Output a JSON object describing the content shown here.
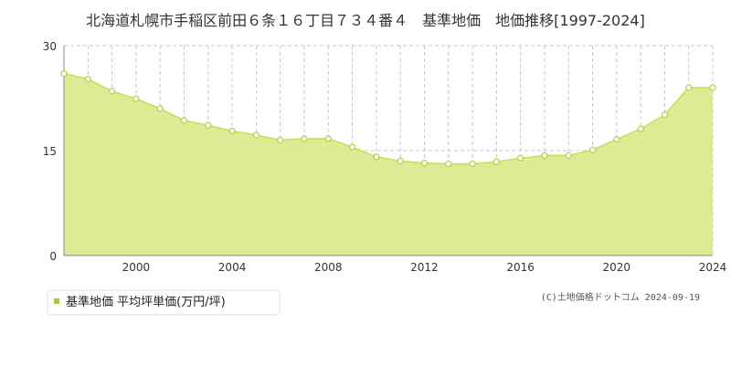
{
  "chart_data": {
    "type": "area",
    "title": "北海道札幌市手稲区前田６条１６丁目７３４番４　基準地価　地価推移[1997-2024]",
    "x": [
      1997,
      1998,
      1999,
      2000,
      2001,
      2002,
      2003,
      2004,
      2005,
      2006,
      2007,
      2008,
      2009,
      2010,
      2011,
      2012,
      2013,
      2014,
      2015,
      2016,
      2017,
      2018,
      2019,
      2020,
      2021,
      2022,
      2023,
      2024
    ],
    "series": [
      {
        "name": "基準地価 平均坪単価(万円/坪)",
        "values": [
          26.0,
          25.2,
          23.5,
          22.4,
          21.0,
          19.3,
          18.6,
          17.8,
          17.2,
          16.5,
          16.7,
          16.7,
          15.5,
          14.1,
          13.5,
          13.2,
          13.1,
          13.1,
          13.4,
          13.9,
          14.3,
          14.3,
          15.1,
          16.6,
          18.1,
          20.1,
          24.0,
          24.0
        ]
      }
    ],
    "xticks": [
      "2000",
      "2004",
      "2008",
      "2012",
      "2016",
      "2020",
      "2024"
    ],
    "xtick_values": [
      2000,
      2004,
      2008,
      2012,
      2016,
      2020,
      2024
    ],
    "yticks": [
      "0",
      "15",
      "30"
    ],
    "ytick_values": [
      0,
      15,
      30
    ],
    "ylim": [
      0,
      30
    ],
    "xlim": [
      1997,
      2024
    ],
    "grid": true,
    "legend_position": "bottom-left",
    "xlabel": "",
    "ylabel": "",
    "colors": {
      "fill": "#dcec94",
      "line": "#c8dc55",
      "marker_fill": "#ffffff",
      "marker_stroke": "#b5cd45",
      "grid": "#c8c8c8",
      "axis": "#888888",
      "legend_marker": "#a7c93a"
    }
  },
  "credit": "(C)土地価格ドットコム 2024-09-19"
}
